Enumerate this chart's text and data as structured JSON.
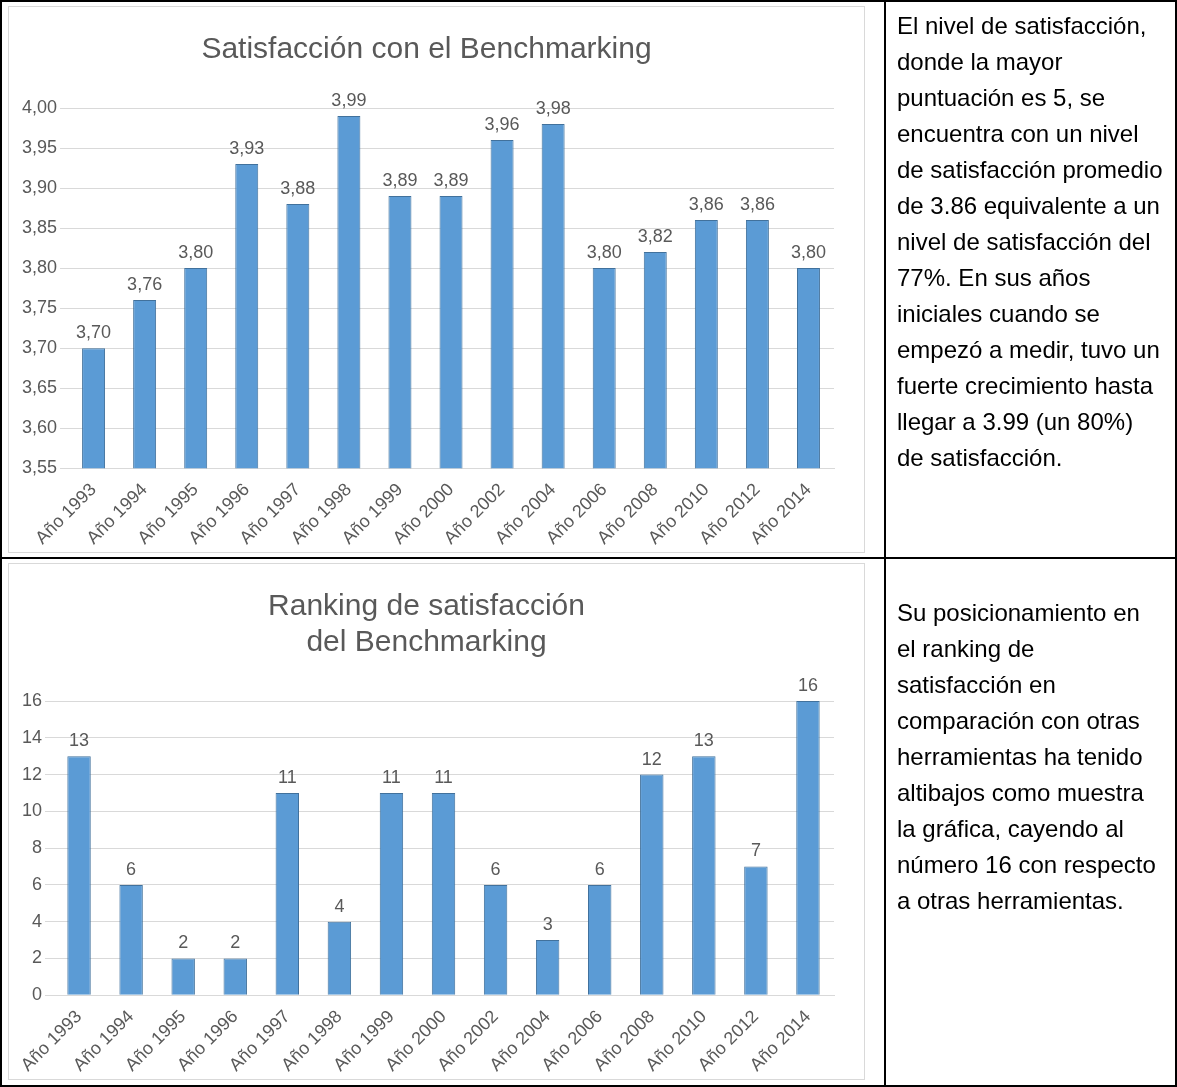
{
  "chart_data": [
    {
      "type": "bar",
      "title": "Satisfacción con el Benchmarking",
      "categories": [
        "Año 1993",
        "Año 1994",
        "Año 1995",
        "Año 1996",
        "Año 1997",
        "Año 1998",
        "Año 1999",
        "Año 2000",
        "Año 2002",
        "Año 2004",
        "Año 2006",
        "Año 2008",
        "Año 2010",
        "Año 2012",
        "Año 2014"
      ],
      "values": [
        3.7,
        3.76,
        3.8,
        3.93,
        3.88,
        3.99,
        3.89,
        3.89,
        3.96,
        3.98,
        3.8,
        3.82,
        3.86,
        3.86,
        3.8
      ],
      "value_labels": [
        "3,70",
        "3,76",
        "3,80",
        "3,93",
        "3,88",
        "3,99",
        "3,89",
        "3,89",
        "3,96",
        "3,98",
        "3,80",
        "3,82",
        "3,86",
        "3,86",
        "3,80"
      ],
      "color": "#5b9bd5",
      "ylim": [
        3.55,
        4.0
      ],
      "yticks": [
        {
          "value": 3.55,
          "label": "3,55"
        },
        {
          "value": 3.6,
          "label": "3,60"
        },
        {
          "value": 3.65,
          "label": "3,65"
        },
        {
          "value": 3.7,
          "label": "3,70"
        },
        {
          "value": 3.75,
          "label": "3,75"
        },
        {
          "value": 3.8,
          "label": "3,80"
        },
        {
          "value": 3.85,
          "label": "3,85"
        },
        {
          "value": 3.9,
          "label": "3,90"
        },
        {
          "value": 3.95,
          "label": "3,95"
        },
        {
          "value": 4.0,
          "label": "4,00"
        }
      ],
      "grid": "y"
    },
    {
      "type": "other",
      "annotations": [
        "El nivel de satisfacción, donde la mayor puntuación es 5, se encuentra con un nivel de satisfacción promedio de 3.86 equivalente a un nivel de satisfacción del 77%. En sus años iniciales cuando se empezó a medir, tuvo un fuerte crecimiento hasta llegar a 3.99 (un 80%) de satisfacción."
      ]
    },
    {
      "type": "bar",
      "title": "Ranking de satisfacción\ndel Benchmarking",
      "categories": [
        "Año 1993",
        "Año 1994",
        "Año 1995",
        "Año 1996",
        "Año 1997",
        "Año 1998",
        "Año 1999",
        "Año 2000",
        "Año 2002",
        "Año 2004",
        "Año 2006",
        "Año 2008",
        "Año 2010",
        "Año 2012",
        "Año 2014"
      ],
      "values": [
        13,
        6,
        2,
        2,
        11,
        4,
        11,
        11,
        6,
        3,
        6,
        12,
        13,
        7,
        16
      ],
      "data_labels": true,
      "color": "#5b9bd5",
      "ylim": [
        0,
        16
      ],
      "yticks": [
        0,
        2,
        4,
        6,
        8,
        10,
        12,
        14,
        16
      ],
      "grid": "y"
    },
    {
      "type": "other",
      "annotations": [
        "Su posicionamiento en el ranking de satisfacción en comparación con otras herramientas ha tenido altibajos como muestra la gráfica, cayendo al número 16 con respecto a otras herramientas."
      ]
    }
  ]
}
